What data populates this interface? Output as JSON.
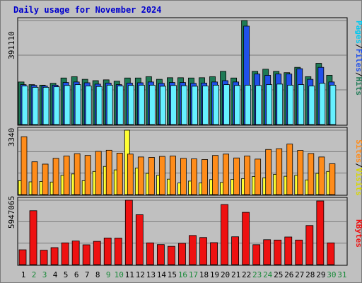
{
  "title": "Daily usage for November 2024",
  "colors": {
    "pages": "#66f0ff",
    "files": "#2050ea",
    "hits": "#1e7a55",
    "visits": "#ffff33",
    "sites": "#ff8c1a",
    "kbytes": "#ee1111",
    "weekend_label": "#1a8a3a",
    "weekday_label": "#000000",
    "title": "#0000cc"
  },
  "axes": {
    "top_max_label": "391110",
    "mid_max_label": "3340",
    "bottom_max_label": "5947065"
  },
  "right_labels": {
    "top": [
      {
        "text": "Pages",
        "color": "#00c8f0"
      },
      {
        "text": "/",
        "color": "#000000"
      },
      {
        "text": "Files",
        "color": "#2050ea"
      },
      {
        "text": "/",
        "color": "#000000"
      },
      {
        "text": "Hits",
        "color": "#1e7a55"
      }
    ],
    "mid": [
      {
        "text": "Sites",
        "color": "#ff8c1a"
      },
      {
        "text": "/",
        "color": "#000000"
      },
      {
        "text": "Visits",
        "color": "#d8d800"
      }
    ],
    "bottom": [
      {
        "text": "KBytes",
        "color": "#ee1111"
      }
    ]
  },
  "chart_data": [
    {
      "type": "bar",
      "title": "Daily usage for November 2024",
      "categories": [
        "1",
        "2",
        "3",
        "4",
        "5",
        "6",
        "7",
        "8",
        "9",
        "10",
        "11",
        "12",
        "13",
        "14",
        "15",
        "16",
        "17",
        "18",
        "19",
        "20",
        "21",
        "22",
        "23",
        "24",
        "25",
        "26",
        "27",
        "28",
        "29",
        "30",
        "31"
      ],
      "weekend_days": [
        2,
        3,
        9,
        10,
        16,
        17,
        23,
        24,
        30,
        31
      ],
      "ylim": [
        0,
        391110
      ],
      "ylabel": "Pages / Files / Hits",
      "series": [
        {
          "name": "Hits",
          "values": [
            160000,
            150000,
            148000,
            155000,
            175000,
            180000,
            170000,
            165000,
            168000,
            163000,
            175000,
            175000,
            180000,
            170000,
            176000,
            176000,
            175000,
            176000,
            180000,
            200000,
            175000,
            391110,
            200000,
            208000,
            200000,
            195000,
            215000,
            180000,
            230000,
            185000,
            0
          ]
        },
        {
          "name": "Files",
          "values": [
            150000,
            147000,
            145000,
            148000,
            158000,
            160000,
            157000,
            152000,
            156000,
            150000,
            156000,
            157000,
            160000,
            155000,
            158000,
            158000,
            155000,
            156000,
            160000,
            165000,
            160000,
            370000,
            190000,
            185000,
            190000,
            190000,
            210000,
            170000,
            215000,
            160000,
            0
          ]
        },
        {
          "name": "Pages",
          "values": [
            145000,
            140000,
            140000,
            142000,
            147000,
            150000,
            145000,
            143000,
            148000,
            145000,
            147000,
            148000,
            148000,
            144000,
            147000,
            146000,
            144000,
            145000,
            148000,
            150000,
            147000,
            148000,
            147000,
            150000,
            152000,
            148000,
            150000,
            145000,
            155000,
            148000,
            0
          ]
        }
      ]
    },
    {
      "type": "bar",
      "categories": [
        "1",
        "2",
        "3",
        "4",
        "5",
        "6",
        "7",
        "8",
        "9",
        "10",
        "11",
        "12",
        "13",
        "14",
        "15",
        "16",
        "17",
        "18",
        "19",
        "20",
        "21",
        "22",
        "23",
        "24",
        "25",
        "26",
        "27",
        "28",
        "29",
        "30",
        "31"
      ],
      "ylim": [
        0,
        3340
      ],
      "ylabel": "Sites / Visits",
      "series": [
        {
          "name": "Sites",
          "values": [
            3000,
            1700,
            1580,
            1880,
            2000,
            2120,
            2030,
            2240,
            2300,
            2150,
            2100,
            1950,
            1930,
            1980,
            2000,
            1880,
            1850,
            1820,
            2030,
            2100,
            1900,
            2000,
            1840,
            2340,
            2380,
            2620,
            2290,
            2130,
            1950,
            1600,
            0
          ]
        },
        {
          "name": "Visits",
          "values": [
            720,
            660,
            680,
            650,
            1000,
            1070,
            720,
            1200,
            1460,
            1280,
            3340,
            1380,
            1100,
            1000,
            800,
            600,
            700,
            600,
            780,
            630,
            790,
            830,
            940,
            870,
            1050,
            950,
            1000,
            760,
            1100,
            1200,
            0
          ]
        }
      ]
    },
    {
      "type": "bar",
      "categories": [
        "1",
        "2",
        "3",
        "4",
        "5",
        "6",
        "7",
        "8",
        "9",
        "10",
        "11",
        "12",
        "13",
        "14",
        "15",
        "16",
        "17",
        "18",
        "19",
        "20",
        "21",
        "22",
        "23",
        "24",
        "25",
        "26",
        "27",
        "28",
        "29",
        "30",
        "31"
      ],
      "ylim": [
        0,
        5947065
      ],
      "ylabel": "KBytes",
      "series": [
        {
          "name": "KBytes",
          "values": [
            1370000,
            4980000,
            1330000,
            1570000,
            2010000,
            2180000,
            1830000,
            2150000,
            2460000,
            2450000,
            5947065,
            4610000,
            2010000,
            1850000,
            1690000,
            1970000,
            2690000,
            2500000,
            2030000,
            5550000,
            2570000,
            4830000,
            1840000,
            2300000,
            2270000,
            2550000,
            2270000,
            3610000,
            5880000,
            2010000,
            0
          ]
        }
      ]
    }
  ],
  "x_labels": [
    "1",
    "2",
    "3",
    "4",
    "5",
    "6",
    "7",
    "8",
    "9",
    "10",
    "11",
    "12",
    "13",
    "14",
    "15",
    "16",
    "17",
    "18",
    "19",
    "20",
    "21",
    "22",
    "23",
    "24",
    "25",
    "26",
    "27",
    "28",
    "29",
    "30",
    "31"
  ]
}
